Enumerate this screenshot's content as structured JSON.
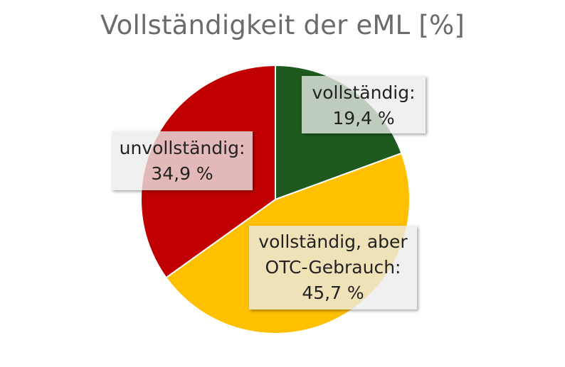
{
  "chart_data": {
    "type": "pie",
    "title": "Vollständigkeit der eML [%]",
    "slices": [
      {
        "label": "vollständig:",
        "value": 19.4,
        "value_text": "19,4 %",
        "color": "#1e5a1e"
      },
      {
        "label": "vollständig, aber OTC-Gebrauch:",
        "label_lines": [
          "vollständig, aber",
          "OTC-Gebrauch:"
        ],
        "value": 45.7,
        "value_text": "45,7 %",
        "color": "#ffc000"
      },
      {
        "label": "unvollständig:",
        "value": 34.9,
        "value_text": "34,9 %",
        "color": "#c00000"
      }
    ],
    "start": "12 o'clock",
    "direction": "clockwise",
    "legend": "none"
  }
}
